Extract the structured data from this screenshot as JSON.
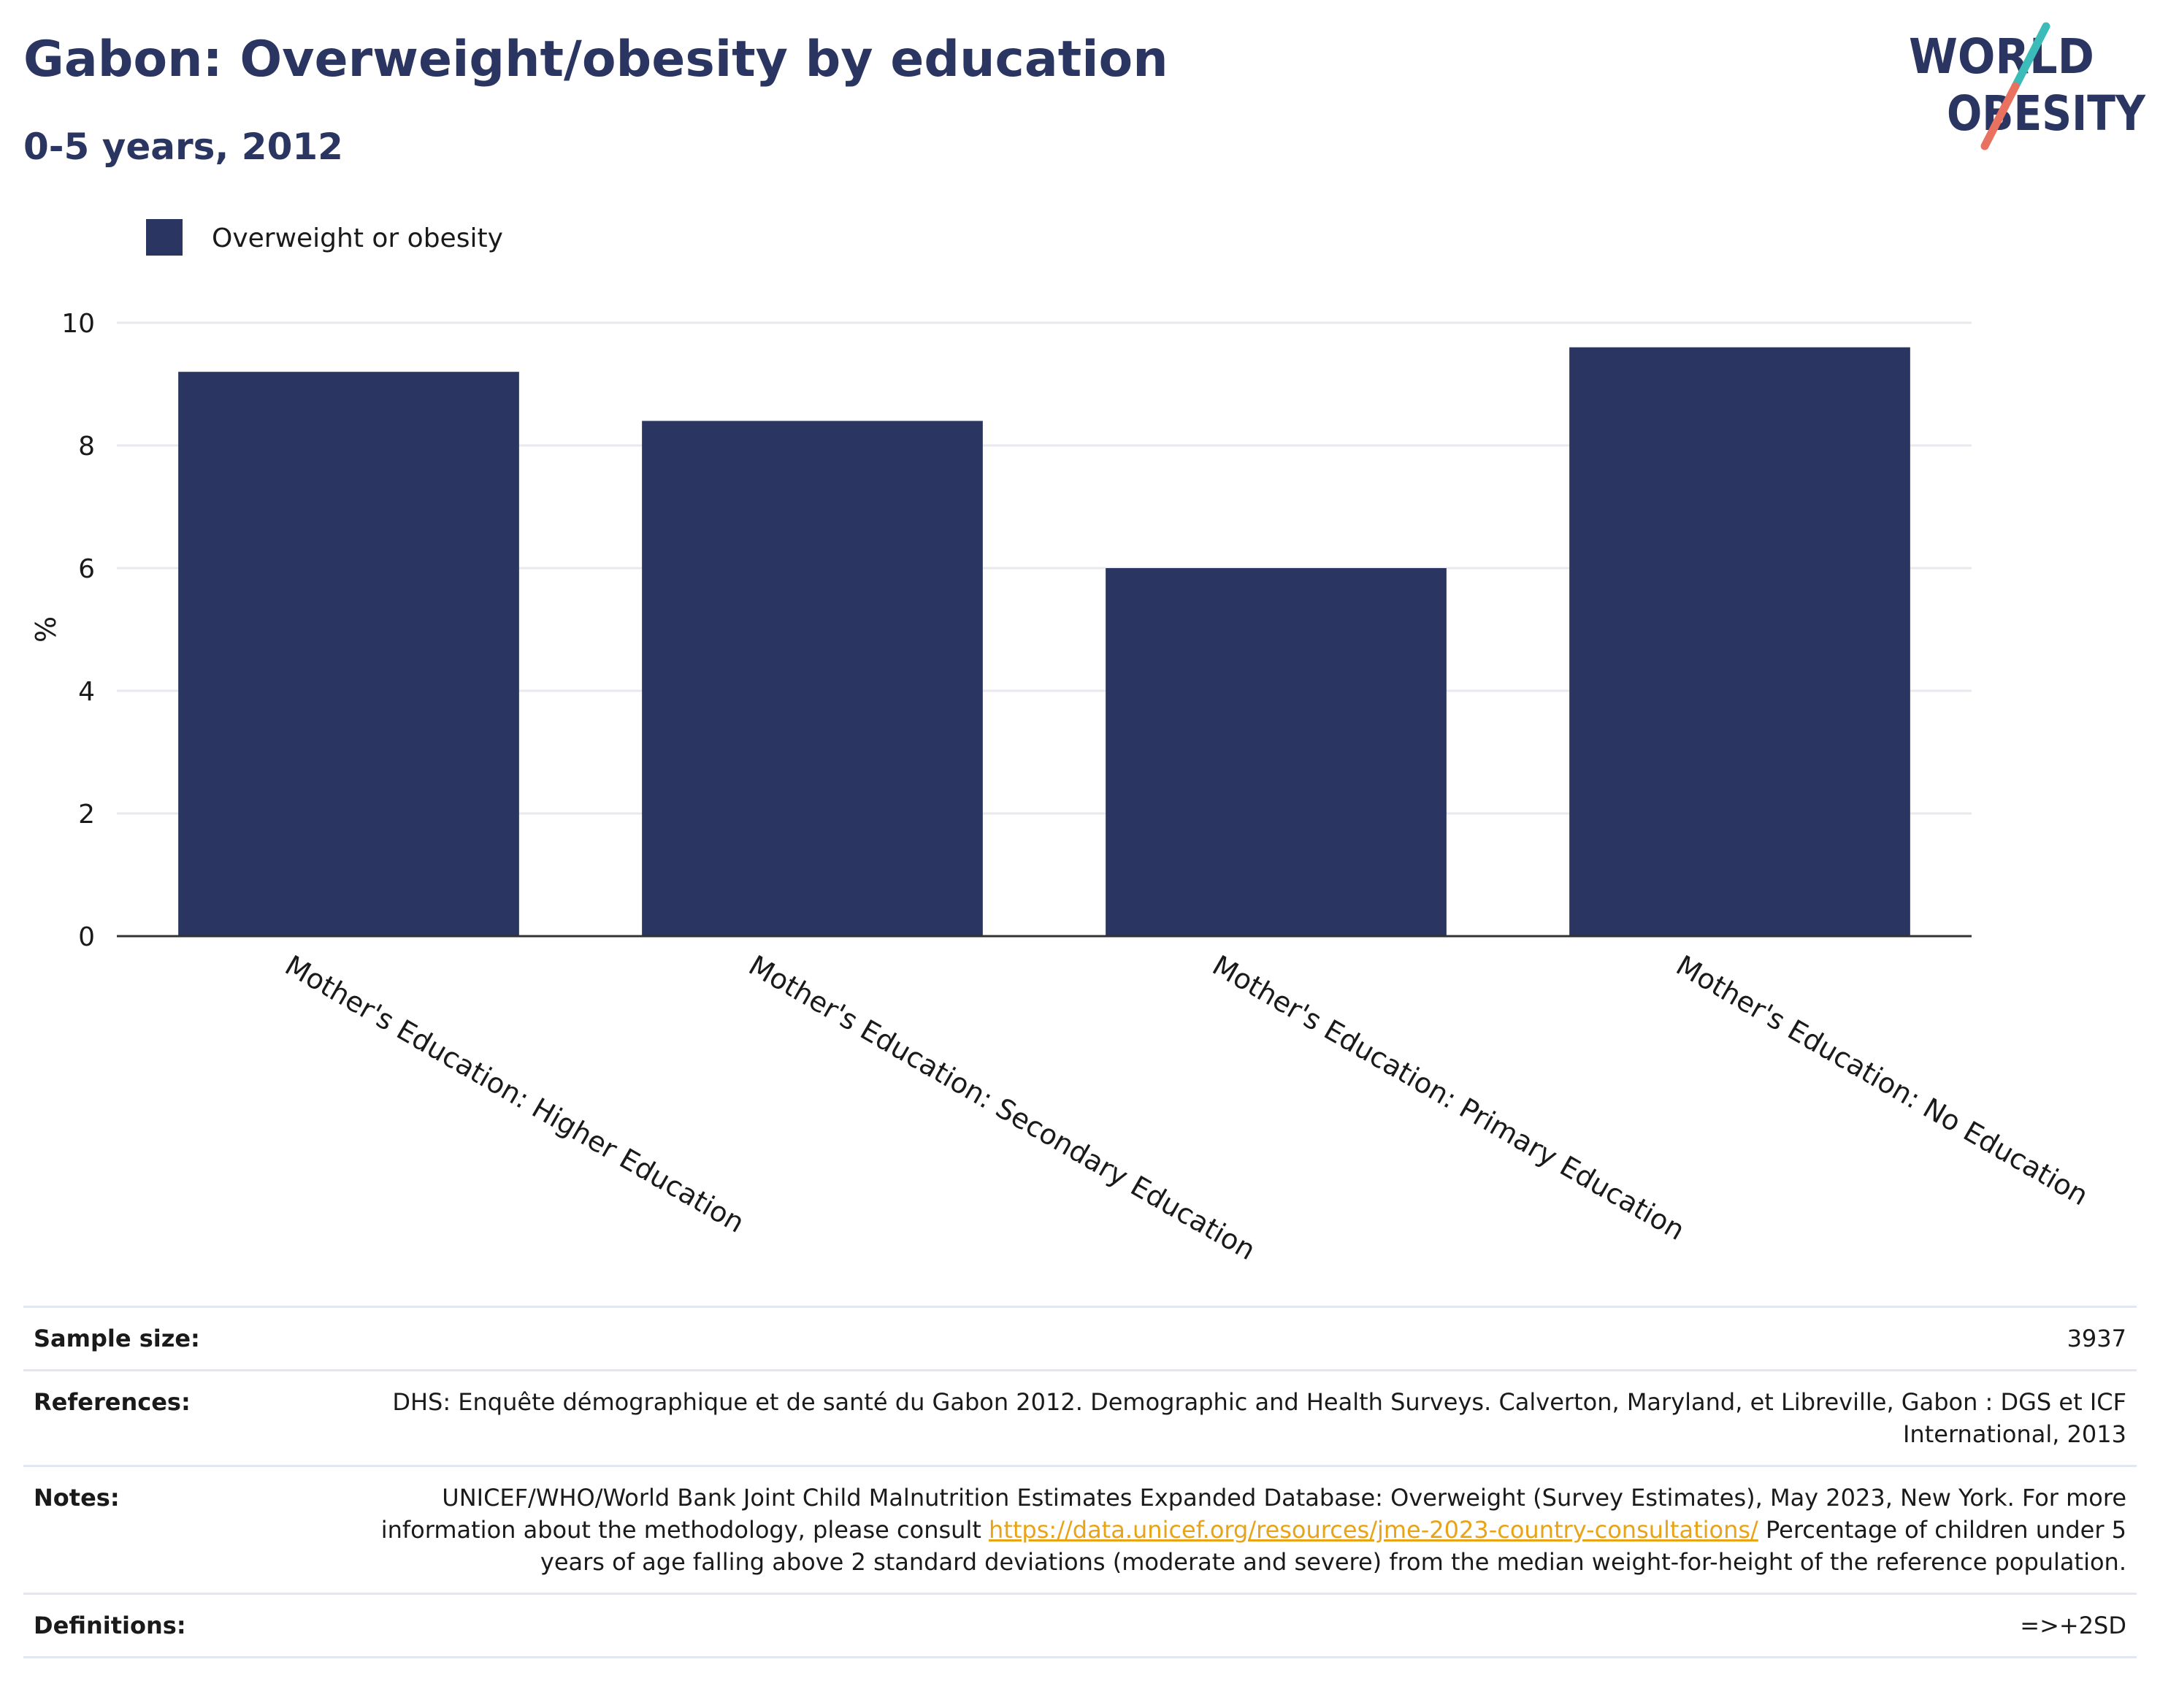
{
  "header": {
    "title": "Gabon: Overweight/obesity by education",
    "subtitle": "0-5 years, 2012"
  },
  "logo": {
    "line1": "WORLD",
    "line2": "OBESITY",
    "colors": {
      "navy": "#2a3661",
      "teal": "#3bbcb8",
      "coral": "#e8715f"
    }
  },
  "colors": {
    "bar": "#2a3661",
    "axis": "#333333",
    "grid": "#e8e8ee",
    "link": "#e8a317"
  },
  "chart_data": {
    "type": "bar",
    "title": "",
    "ylabel": "%",
    "xlabel": "",
    "ylim": [
      0,
      10
    ],
    "yticks": [
      0,
      2,
      4,
      6,
      8,
      10
    ],
    "grid": true,
    "legend_position": "top-left",
    "categories": [
      "Mother's Education: Higher Education",
      "Mother's Education: Secondary Education",
      "Mother's Education: Primary Education",
      "Mother's Education: No Education"
    ],
    "series": [
      {
        "name": "Overweight or obesity",
        "values": [
          9.2,
          8.4,
          6.0,
          9.6
        ]
      }
    ]
  },
  "meta": {
    "sample_size": {
      "label": "Sample size:",
      "value": "3937"
    },
    "references": {
      "label": "References:",
      "value": "DHS: Enquête démographique et de santé du Gabon 2012. Demographic and Health Surveys. Calverton, Maryland, et Libreville, Gabon : DGS et ICF International, 2013"
    },
    "notes": {
      "label": "Notes:",
      "text_before": "UNICEF/WHO/World Bank Joint Child Malnutrition Estimates Expanded Database: Overweight (Survey Estimates), May 2023, New York. For more information about the methodology, please consult ",
      "link": "https://data.unicef.org/resources/jme-2023-country-consultations/",
      "text_after": " Percentage of children under 5 years of age falling above 2 standard deviations (moderate and severe) from the median weight-for-height of the reference population."
    },
    "definitions": {
      "label": "Definitions:",
      "value": "=>+2SD"
    }
  }
}
